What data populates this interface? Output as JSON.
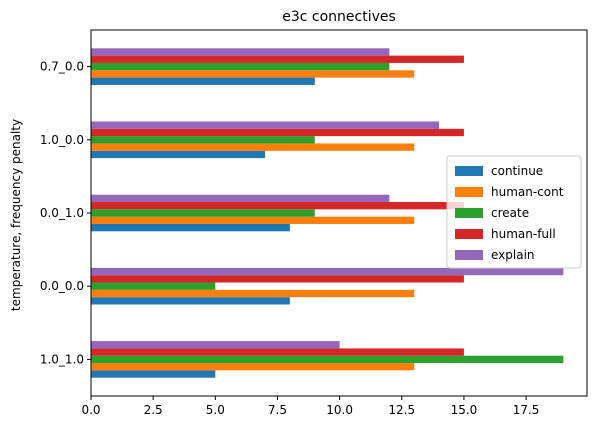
{
  "chart_data": {
    "type": "bar",
    "orientation": "horizontal",
    "title": "e3c connectives",
    "xlabel": "",
    "ylabel": "temperature, frequency penalty",
    "categories": [
      "1.0_1.0",
      "0.0_0.0",
      "0.0_1.0",
      "1.0_0.0",
      "0.7_0.0"
    ],
    "series": [
      {
        "name": "continue",
        "color": "#1f77b4",
        "values": [
          5,
          8,
          8,
          7,
          9
        ]
      },
      {
        "name": "human-cont",
        "color": "#ff7f0e",
        "values": [
          13,
          13,
          13,
          13,
          13
        ]
      },
      {
        "name": "create",
        "color": "#2ca02c",
        "values": [
          19,
          5,
          9,
          9,
          12
        ]
      },
      {
        "name": "human-full",
        "color": "#d62728",
        "values": [
          15,
          15,
          15,
          15,
          15
        ]
      },
      {
        "name": "explain",
        "color": "#9467bd",
        "values": [
          10,
          19,
          12,
          14,
          12
        ]
      }
    ],
    "xlim": [
      0,
      19.95
    ],
    "xticks": [
      "0.0",
      "2.5",
      "5.0",
      "7.5",
      "10.0",
      "12.5",
      "15.0",
      "17.5"
    ],
    "xtick_values": [
      0,
      2.5,
      5,
      7.5,
      10,
      12.5,
      15,
      17.5
    ],
    "grid": false,
    "legend_position": "center-right"
  }
}
